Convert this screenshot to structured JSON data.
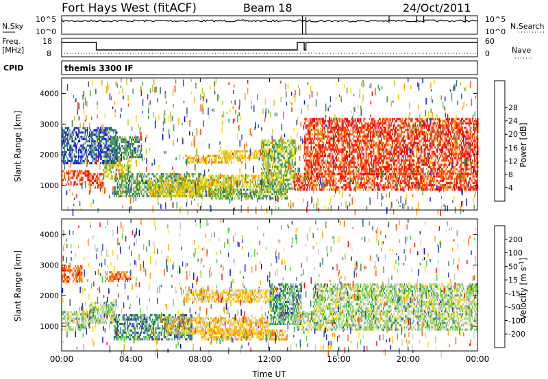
{
  "header": {
    "station": "Fort Hays West (fitACF)",
    "beam": "Beam 18",
    "date": "24/Oct/2011"
  },
  "noise_panel": {
    "left_label": "N.Sky",
    "left_ticks": [
      "10^5",
      "10^0"
    ],
    "right_label": "N.Search",
    "right_ticks": [
      "10^5",
      "10^0"
    ]
  },
  "freq_panel": {
    "left_label_top": "Freq.",
    "left_label_bottom": "[MHz]",
    "left_ticks": [
      "18",
      "8"
    ],
    "right_label": "Nave",
    "right_ticks": [
      "60",
      "0"
    ]
  },
  "cpid_panel": {
    "label": "CPID",
    "mode": "themis 3300 IF"
  },
  "chart_data": [
    {
      "type": "heatmap",
      "name": "power",
      "ylabel": "Slant Range [km]",
      "xlabel": "",
      "ylim": [
        200,
        4500
      ],
      "xlim_hours": [
        0,
        24
      ],
      "y_ticks": [
        "1000",
        "2000",
        "3000",
        "4000"
      ],
      "colorbar": {
        "label": "Power [dB]",
        "ticks": [
          "4",
          "8",
          "12",
          "16",
          "20",
          "24",
          "28"
        ],
        "colors": [
          "#0000ff",
          "#2a3fb0",
          "#2a8060",
          "#3aa040",
          "#b8c820",
          "#ffd700",
          "#ff9d00",
          "#ff5a00",
          "#ff0000"
        ]
      },
      "bands": [
        {
          "t0": 0,
          "t1": 1.6,
          "r0": 1050,
          "r1": 1500,
          "level": 0.92
        },
        {
          "t0": 1.6,
          "t1": 2.4,
          "r0": 950,
          "r1": 1400,
          "level": 0.9
        },
        {
          "t0": 2.4,
          "t1": 4.0,
          "r0": 1200,
          "r1": 1900,
          "level": 0.55
        },
        {
          "t0": 0,
          "t1": 3.2,
          "r0": 1700,
          "r1": 2900,
          "level": 0.15
        },
        {
          "t0": 2.8,
          "t1": 4.6,
          "r0": 1900,
          "r1": 2600,
          "level": 0.3
        },
        {
          "t0": 3.0,
          "t1": 8.0,
          "r0": 650,
          "r1": 1400,
          "level": 0.35
        },
        {
          "t0": 5.0,
          "t1": 10.0,
          "r0": 700,
          "r1": 1200,
          "level": 0.6
        },
        {
          "t0": 7.0,
          "t1": 10.5,
          "r0": 1750,
          "r1": 2000,
          "level": 0.7
        },
        {
          "t0": 9.0,
          "t1": 12.2,
          "r0": 1900,
          "r1": 2150,
          "level": 0.65
        },
        {
          "t0": 8.0,
          "t1": 12.0,
          "r0": 950,
          "r1": 1350,
          "level": 0.55
        },
        {
          "t0": 8.5,
          "t1": 13.0,
          "r0": 550,
          "r1": 900,
          "level": 0.4
        },
        {
          "t0": 11.5,
          "t1": 13.5,
          "r0": 900,
          "r1": 2500,
          "level": 0.45
        },
        {
          "t0": 13.4,
          "t1": 24.0,
          "r0": 900,
          "r1": 1400,
          "level": 0.93
        },
        {
          "t0": 14.0,
          "t1": 24.0,
          "r0": 1400,
          "r1": 3200,
          "level": 0.96
        }
      ]
    },
    {
      "type": "heatmap",
      "name": "velocity",
      "ylabel": "Slant Range [km]",
      "xlabel": "Time UT",
      "ylim": [
        200,
        4500
      ],
      "xlim_hours": [
        0,
        24
      ],
      "y_ticks": [
        "1000",
        "2000",
        "3000",
        "4000"
      ],
      "x_ticks": [
        "00:00",
        "04:00",
        "08:00",
        "12:00",
        "16:00",
        "20:00",
        "00:00"
      ],
      "colorbar": {
        "label": "Velocity [m s",
        "label_sup": "-1",
        "label_close": "]",
        "ticks": [
          "200",
          "100",
          "50",
          "15",
          "-15",
          "-50",
          "-100",
          "-200"
        ],
        "colors": [
          "#0000ff",
          "#2a3fb0",
          "#2a8060",
          "#5ad040",
          "#c8c8c8",
          "#ffd700",
          "#ff9d00",
          "#ff5a00",
          "#ff0000"
        ]
      },
      "bands": [
        {
          "t0": 0,
          "t1": 1.6,
          "r0": 900,
          "r1": 1500,
          "level": 0.45
        },
        {
          "t0": 0,
          "t1": 1.2,
          "r0": 2500,
          "r1": 3000,
          "level": 0.9
        },
        {
          "t0": 1.6,
          "t1": 3.0,
          "r0": 1100,
          "r1": 1800,
          "level": 0.45
        },
        {
          "t0": 2.5,
          "t1": 4.0,
          "r0": 2500,
          "r1": 2800,
          "level": 0.85
        },
        {
          "t0": 3.0,
          "t1": 7.5,
          "r0": 600,
          "r1": 1400,
          "level": 0.25
        },
        {
          "t0": 6.0,
          "t1": 12.0,
          "r0": 800,
          "r1": 1300,
          "level": 0.65
        },
        {
          "t0": 7.0,
          "t1": 12.2,
          "r0": 1800,
          "r1": 2200,
          "level": 0.65
        },
        {
          "t0": 8.0,
          "t1": 13.0,
          "r0": 550,
          "r1": 900,
          "level": 0.7
        },
        {
          "t0": 12.0,
          "t1": 13.8,
          "r0": 1100,
          "r1": 2400,
          "level": 0.28
        },
        {
          "t0": 13.5,
          "t1": 24.0,
          "r0": 900,
          "r1": 1500,
          "level": 0.45
        },
        {
          "t0": 14.5,
          "t1": 24.0,
          "r0": 1500,
          "r1": 2400,
          "level": 0.45
        }
      ]
    }
  ]
}
